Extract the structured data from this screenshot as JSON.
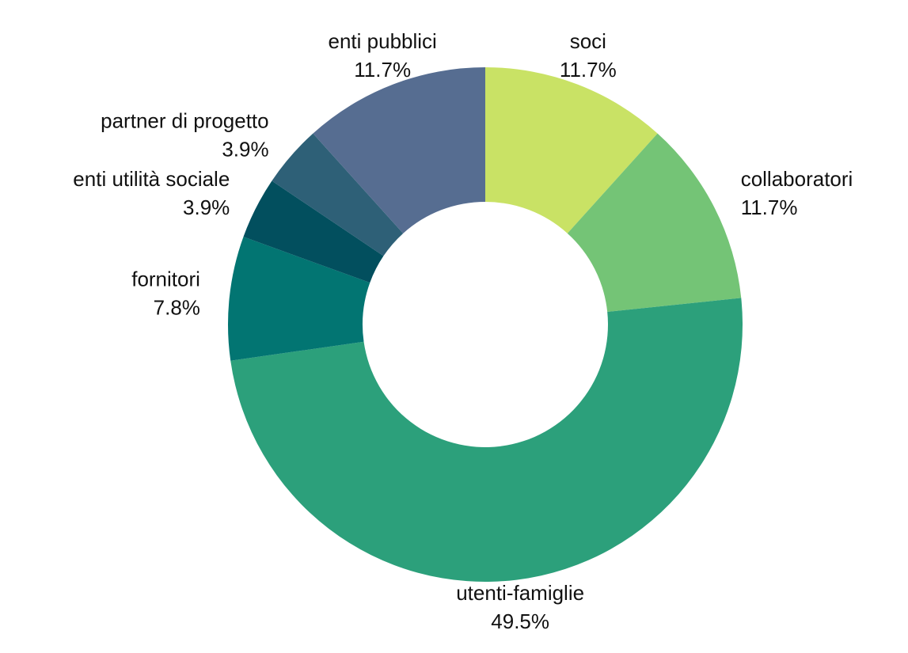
{
  "chart_data": {
    "type": "donut",
    "categories": [
      "soci",
      "collaboratori",
      "utenti-famiglie",
      "fornitori",
      "enti utilità sociale",
      "partner di progetto",
      "enti pubblici"
    ],
    "values": [
      11.7,
      11.7,
      49.5,
      7.8,
      3.9,
      3.9,
      11.7
    ],
    "value_labels": [
      "11.7%",
      "11.7%",
      "49.5%",
      "7.8%",
      "3.9%",
      "3.9%",
      "11.7%"
    ],
    "colors": [
      "#c9e265",
      "#74c476",
      "#2ca07b",
      "#027572",
      "#024f5e",
      "#2e6077",
      "#566d91"
    ]
  }
}
